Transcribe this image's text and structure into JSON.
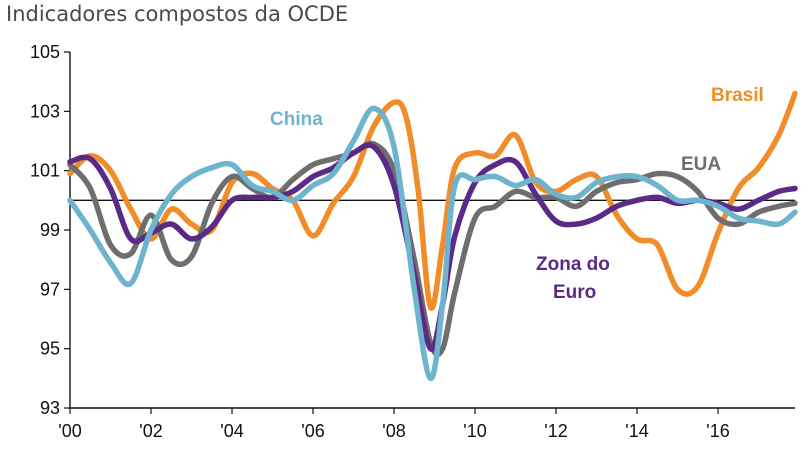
{
  "title": "Indicadores compostos da OCDE",
  "chart_data": {
    "type": "line",
    "title": "Indicadores compostos da OCDE",
    "xlabel": "",
    "ylabel": "",
    "xlim": [
      2000,
      2017.9
    ],
    "ylim": [
      93,
      105
    ],
    "x_ticks": [
      {
        "value": 2000,
        "label": "'00"
      },
      {
        "value": 2002,
        "label": "'02"
      },
      {
        "value": 2004,
        "label": "'04"
      },
      {
        "value": 2006,
        "label": "'06"
      },
      {
        "value": 2008,
        "label": "'08"
      },
      {
        "value": 2010,
        "label": "'10"
      },
      {
        "value": 2012,
        "label": "'12"
      },
      {
        "value": 2014,
        "label": "'14"
      },
      {
        "value": 2016,
        "label": "'16"
      }
    ],
    "y_ticks": [
      93,
      95,
      97,
      99,
      101,
      103,
      105
    ],
    "reference_line": 100,
    "series": [
      {
        "name": "Brasil",
        "color": "#F28C28",
        "x": [
          2000.0,
          2000.5,
          2001.0,
          2001.5,
          2002.0,
          2002.5,
          2003.0,
          2003.5,
          2004.0,
          2004.5,
          2005.0,
          2005.5,
          2006.0,
          2006.5,
          2007.0,
          2007.5,
          2008.0,
          2008.3,
          2008.6,
          2008.9,
          2009.2,
          2009.5,
          2010.0,
          2010.5,
          2011.0,
          2011.5,
          2012.0,
          2012.5,
          2013.0,
          2013.5,
          2014.0,
          2014.5,
          2015.0,
          2015.5,
          2016.0,
          2016.5,
          2017.0,
          2017.5,
          2017.9
        ],
        "values": [
          100.9,
          101.5,
          101.0,
          99.7,
          98.7,
          99.7,
          99.2,
          99.0,
          100.6,
          100.9,
          100.4,
          100.0,
          98.8,
          99.9,
          100.8,
          102.5,
          103.3,
          102.8,
          100.3,
          96.4,
          98.5,
          101.1,
          101.6,
          101.5,
          102.2,
          100.6,
          100.3,
          100.7,
          100.8,
          99.5,
          98.7,
          98.5,
          97.0,
          97.1,
          98.9,
          100.4,
          101.1,
          102.2,
          103.6
        ]
      },
      {
        "name": "EUA",
        "color": "#6E6E6E",
        "x": [
          2000.0,
          2000.5,
          2001.0,
          2001.5,
          2002.0,
          2002.5,
          2003.0,
          2003.5,
          2004.0,
          2004.5,
          2005.0,
          2005.5,
          2006.0,
          2006.5,
          2007.0,
          2007.5,
          2008.0,
          2008.5,
          2008.9,
          2009.2,
          2009.5,
          2010.0,
          2010.5,
          2011.0,
          2011.5,
          2012.0,
          2012.5,
          2013.0,
          2013.5,
          2014.0,
          2014.5,
          2015.0,
          2015.5,
          2016.0,
          2016.5,
          2017.0,
          2017.5,
          2017.9
        ],
        "values": [
          101.2,
          100.4,
          98.5,
          98.2,
          99.5,
          98.0,
          98.1,
          99.9,
          100.8,
          100.4,
          100.1,
          100.7,
          101.2,
          101.4,
          101.6,
          101.9,
          101.0,
          98.0,
          95.2,
          95.0,
          96.9,
          99.4,
          99.8,
          100.3,
          100.1,
          100.1,
          99.8,
          100.3,
          100.6,
          100.7,
          100.9,
          100.8,
          100.3,
          99.4,
          99.2,
          99.6,
          99.8,
          99.9
        ]
      },
      {
        "name": "Zona do Euro",
        "color": "#5B2A86",
        "x": [
          2000.0,
          2000.5,
          2001.0,
          2001.5,
          2002.0,
          2002.5,
          2003.0,
          2003.5,
          2004.0,
          2004.5,
          2005.0,
          2005.5,
          2006.0,
          2006.5,
          2007.0,
          2007.5,
          2008.0,
          2008.5,
          2008.9,
          2009.2,
          2009.5,
          2010.0,
          2010.5,
          2011.0,
          2011.5,
          2012.0,
          2012.5,
          2013.0,
          2013.5,
          2014.0,
          2014.5,
          2015.0,
          2015.5,
          2016.0,
          2016.5,
          2017.0,
          2017.5,
          2017.9
        ],
        "values": [
          101.3,
          101.4,
          100.4,
          98.7,
          98.9,
          99.2,
          98.7,
          99.1,
          100.0,
          100.1,
          100.1,
          100.3,
          100.8,
          101.1,
          101.6,
          101.8,
          100.5,
          97.5,
          95.0,
          96.5,
          98.8,
          100.6,
          101.2,
          101.3,
          100.2,
          99.3,
          99.2,
          99.4,
          99.8,
          100.0,
          100.1,
          99.9,
          100.0,
          99.9,
          99.7,
          100.0,
          100.3,
          100.4
        ]
      },
      {
        "name": "China",
        "color": "#6FB4CF",
        "x": [
          2000.0,
          2000.5,
          2001.0,
          2001.5,
          2002.0,
          2002.5,
          2003.0,
          2003.5,
          2004.0,
          2004.5,
          2005.0,
          2005.5,
          2006.0,
          2006.5,
          2007.0,
          2007.5,
          2008.0,
          2008.5,
          2008.9,
          2009.2,
          2009.5,
          2010.0,
          2010.5,
          2011.0,
          2011.5,
          2012.0,
          2012.5,
          2013.0,
          2013.5,
          2014.0,
          2014.5,
          2015.0,
          2015.5,
          2016.0,
          2016.5,
          2017.0,
          2017.5,
          2017.9
        ],
        "values": [
          100.0,
          99.0,
          97.9,
          97.2,
          99.0,
          100.2,
          100.8,
          101.1,
          101.2,
          100.5,
          100.3,
          100.0,
          100.5,
          100.9,
          102.0,
          103.1,
          101.8,
          97.0,
          94.0,
          96.5,
          100.5,
          100.7,
          100.8,
          100.5,
          100.7,
          100.2,
          100.1,
          100.6,
          100.8,
          100.8,
          100.5,
          100.0,
          100.0,
          99.8,
          99.4,
          99.3,
          99.2,
          99.6
        ]
      }
    ],
    "labels": [
      {
        "series": "China",
        "text": "China"
      },
      {
        "series": "Brasil",
        "text": "Brasil"
      },
      {
        "series": "EUA",
        "text": "EUA"
      },
      {
        "series": "Zona do Euro",
        "text": "Zona do",
        "text2": "Euro"
      }
    ]
  }
}
